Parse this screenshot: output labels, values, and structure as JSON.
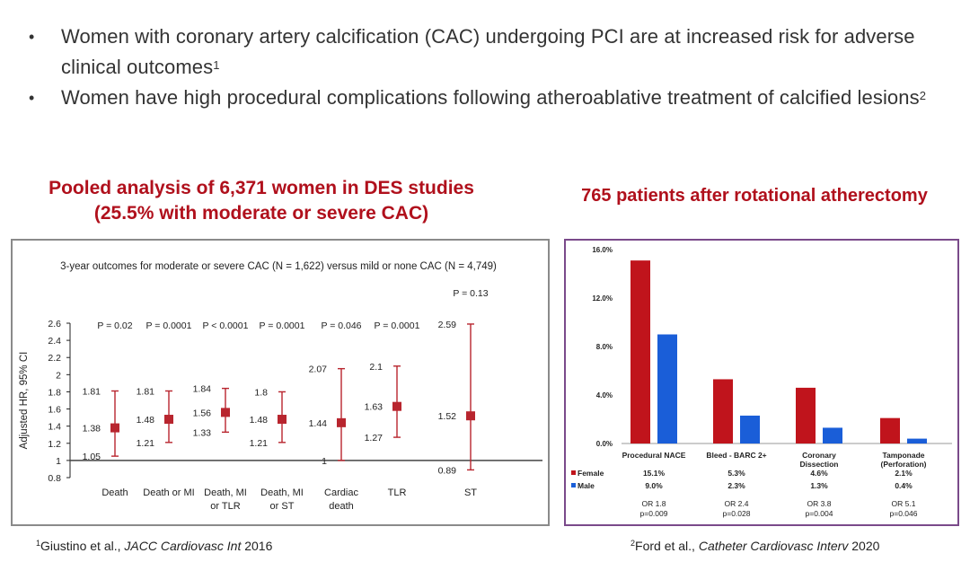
{
  "bullets": [
    {
      "text": "Women with coronary artery calcification (CAC) undergoing PCI are at increased risk for adverse clinical outcomes",
      "ref": "1"
    },
    {
      "text": "Women have high procedural complications following atheroablative treatment of calcified lesions",
      "ref": "2"
    }
  ],
  "left_heading": {
    "line1": "Pooled analysis of 6,371 women in DES studies",
    "line2": "(25.5% with moderate or severe CAC)"
  },
  "right_heading": "765 patients after rotational atherectomy",
  "footnotes": {
    "left": {
      "sup": "1",
      "authors": "Giustino et al., ",
      "journal": "JACC Cardiovasc Int",
      "year": " 2016"
    },
    "right": {
      "sup": "2",
      "authors": "Ford et al., ",
      "journal": "Catheter Cardiovasc Interv",
      "year": " 2020"
    }
  },
  "colors": {
    "accent": "#b0101c",
    "female": "#c0141c",
    "male": "#1a5ed8",
    "ci": "#b8252e"
  },
  "chart_data": [
    {
      "type": "scatter",
      "title": "3-year outcomes for moderate or severe CAC (N = 1,622) versus mild or none CAC (N = 4,749)",
      "ylabel": "Adjusted HR, 95% CI",
      "ylim": [
        0.8,
        2.6
      ],
      "yticks": [
        "0.8",
        "1",
        "1.2",
        "1.4",
        "1.6",
        "1.8",
        "2",
        "2.2",
        "2.4",
        "2.6"
      ],
      "reference_line": 1,
      "points": [
        {
          "label": "Death",
          "hr": 1.38,
          "lo": 1.05,
          "hi": 1.81,
          "hr_text": "1.38",
          "lo_text": "1.05",
          "hi_text": "1.81",
          "p": "P = 0.02"
        },
        {
          "label": "Death or MI",
          "hr": 1.48,
          "lo": 1.21,
          "hi": 1.81,
          "hr_text": "1.48",
          "lo_text": "1.21",
          "hi_text": "1.81",
          "p": "P = 0.0001"
        },
        {
          "label": "Death, MI or TLR",
          "hr": 1.56,
          "lo": 1.33,
          "hi": 1.84,
          "hr_text": "1.56",
          "lo_text": "1.33",
          "hi_text": "1.84",
          "p": "P < 0.0001"
        },
        {
          "label": "Death, MI or ST",
          "hr": 1.48,
          "lo": 1.21,
          "hi": 1.8,
          "hr_text": "1.48",
          "lo_text": "1.21",
          "hi_text": "1.8",
          "p": "P = 0.0001"
        },
        {
          "label": "Cardiac death",
          "hr": 1.44,
          "lo": 1.0,
          "hi": 2.07,
          "hr_text": "1.44",
          "lo_text": "1",
          "hi_text": "2.07",
          "p": "P = 0.046"
        },
        {
          "label": "TLR",
          "hr": 1.63,
          "lo": 1.27,
          "hi": 2.1,
          "hr_text": "1.63",
          "lo_text": "1.27",
          "hi_text": "2.1",
          "p": "P = 0.0001"
        },
        {
          "label": "ST",
          "hr": 1.52,
          "lo": 0.89,
          "hi": 2.59,
          "hr_text": "1.52",
          "lo_text": "0.89",
          "hi_text": "2.59",
          "p": "P = 0.13"
        }
      ]
    },
    {
      "type": "bar",
      "ylim": [
        0,
        16
      ],
      "yticks": [
        "0.0%",
        "4.0%",
        "8.0%",
        "12.0%",
        "16.0%"
      ],
      "categories": [
        {
          "lines": [
            "Procedural NACE"
          ]
        },
        {
          "lines": [
            "Bleed - BARC 2+"
          ]
        },
        {
          "lines": [
            "Coronary",
            "Dissection"
          ]
        },
        {
          "lines": [
            "Tamponade",
            "(Perforation)"
          ]
        }
      ],
      "series": [
        {
          "name": "Female",
          "values": [
            15.1,
            5.3,
            4.6,
            2.1
          ],
          "labels": [
            "15.1%",
            "5.3%",
            "4.6%",
            "2.1%"
          ]
        },
        {
          "name": "Male",
          "values": [
            9.0,
            2.3,
            1.3,
            0.4
          ],
          "labels": [
            "9.0%",
            "2.3%",
            "1.3%",
            "0.4%"
          ]
        }
      ],
      "odds_ratios": [
        {
          "or": "OR 1.8",
          "p": "p=0.009"
        },
        {
          "or": "OR 2.4",
          "p": "p=0.028"
        },
        {
          "or": "OR 3.8",
          "p": "p=0.004"
        },
        {
          "or": "OR 5.1",
          "p": "p=0.046"
        }
      ]
    }
  ]
}
